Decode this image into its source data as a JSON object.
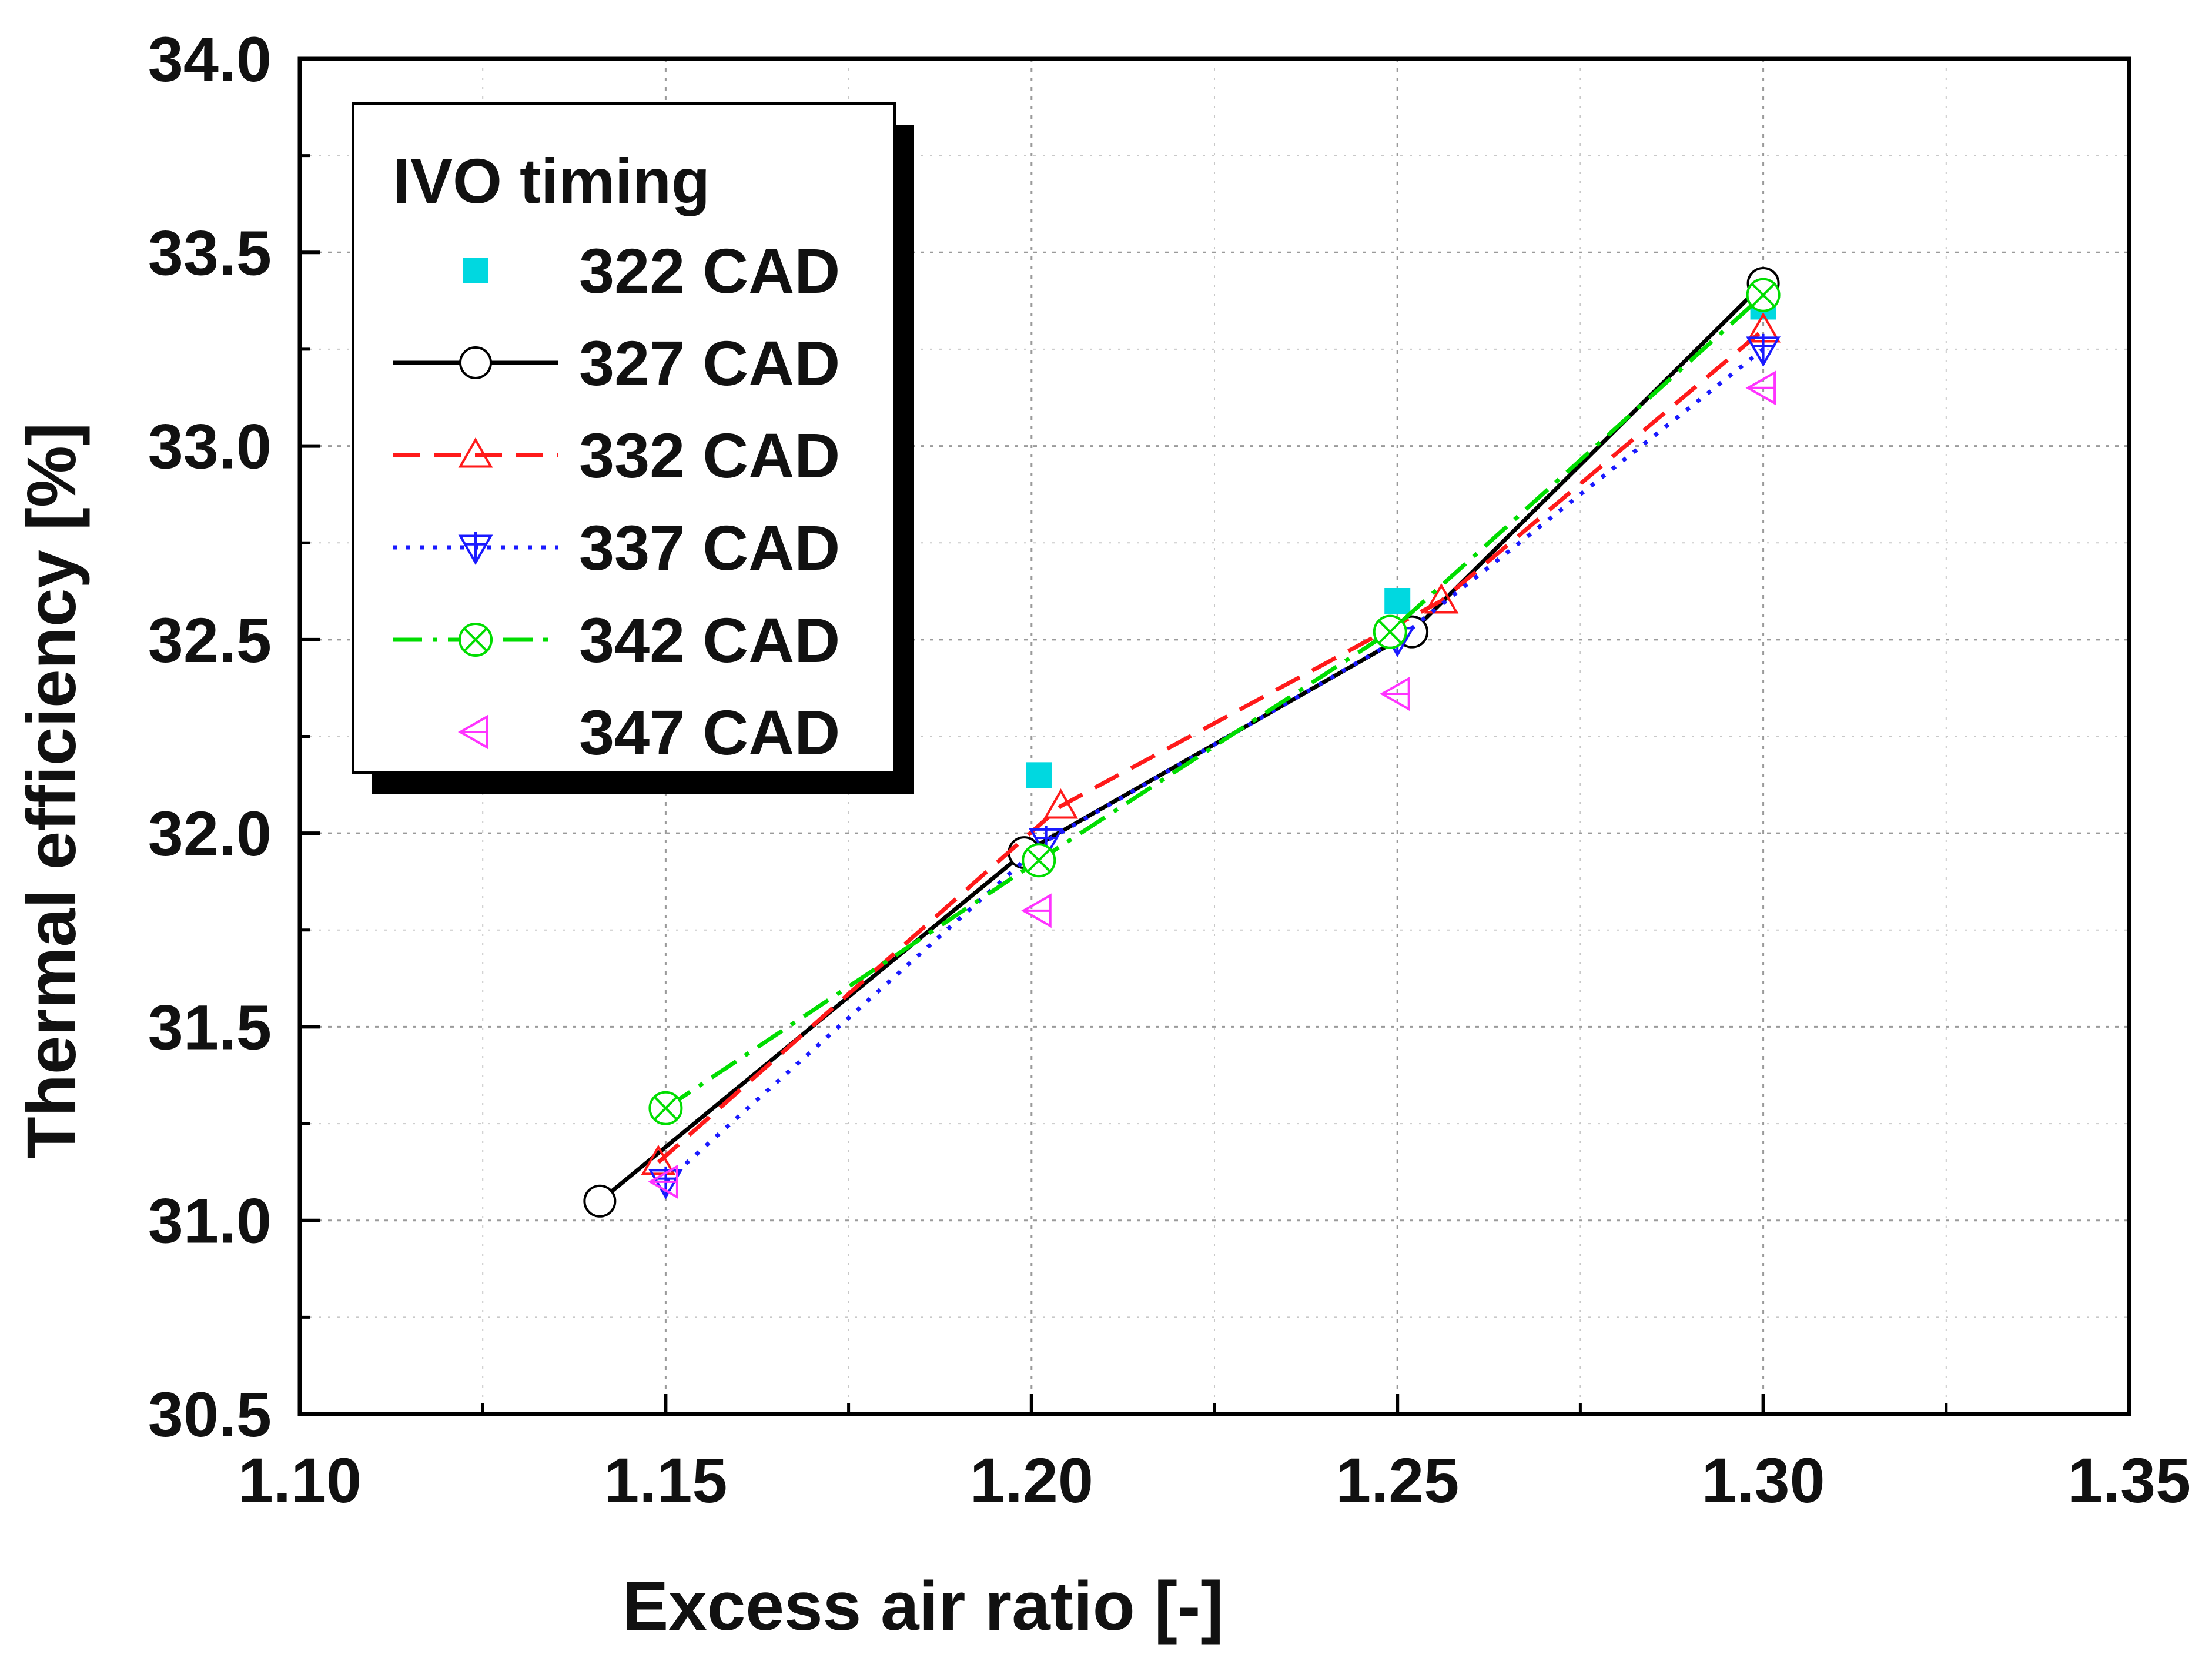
{
  "chart_data": {
    "type": "line",
    "title": "",
    "xlabel": "Excess air ratio [-]",
    "ylabel": "Thermal efficiency [%]",
    "xlim": [
      1.1,
      1.35
    ],
    "ylim": [
      30.5,
      34.0
    ],
    "xticks": [
      "1.10",
      "1.15",
      "1.20",
      "1.25",
      "1.30",
      "1.35"
    ],
    "yticks": [
      "30.5",
      "31.0",
      "31.5",
      "32.0",
      "32.5",
      "33.0",
      "33.5",
      "34.0"
    ],
    "grid": true,
    "legend_title": "IVO timing",
    "legend_position": "top-left",
    "series": [
      {
        "name": "322 CAD",
        "color": "#00d8e0",
        "line": "none",
        "marker": "square",
        "x": [
          1.201,
          1.25,
          1.3
        ],
        "y": [
          32.15,
          32.6,
          33.36
        ]
      },
      {
        "name": "327 CAD",
        "color": "#000000",
        "line": "solid",
        "marker": "circle",
        "x": [
          1.141,
          1.199,
          1.252,
          1.3
        ],
        "y": [
          31.05,
          31.95,
          32.52,
          33.42
        ]
      },
      {
        "name": "332 CAD",
        "color": "#ff1a1a",
        "line": "dash",
        "marker": "triangle-up",
        "x": [
          1.149,
          1.204,
          1.256,
          1.3
        ],
        "y": [
          31.15,
          32.07,
          32.6,
          33.3
        ]
      },
      {
        "name": "337 CAD",
        "color": "#1a1aff",
        "line": "dot",
        "marker": "triangle-down",
        "x": [
          1.15,
          1.202,
          1.25,
          1.3
        ],
        "y": [
          31.1,
          31.98,
          32.5,
          33.25
        ]
      },
      {
        "name": "342 CAD",
        "color": "#00dd00",
        "line": "dashdot",
        "marker": "circle-x",
        "x": [
          1.15,
          1.201,
          1.249,
          1.3
        ],
        "y": [
          31.29,
          31.93,
          32.52,
          33.39
        ]
      },
      {
        "name": "347 CAD",
        "color": "#ff33ff",
        "line": "none",
        "marker": "triangle-left",
        "x": [
          1.15,
          1.201,
          1.25,
          1.3
        ],
        "y": [
          31.1,
          31.8,
          32.36,
          33.15
        ]
      }
    ]
  }
}
